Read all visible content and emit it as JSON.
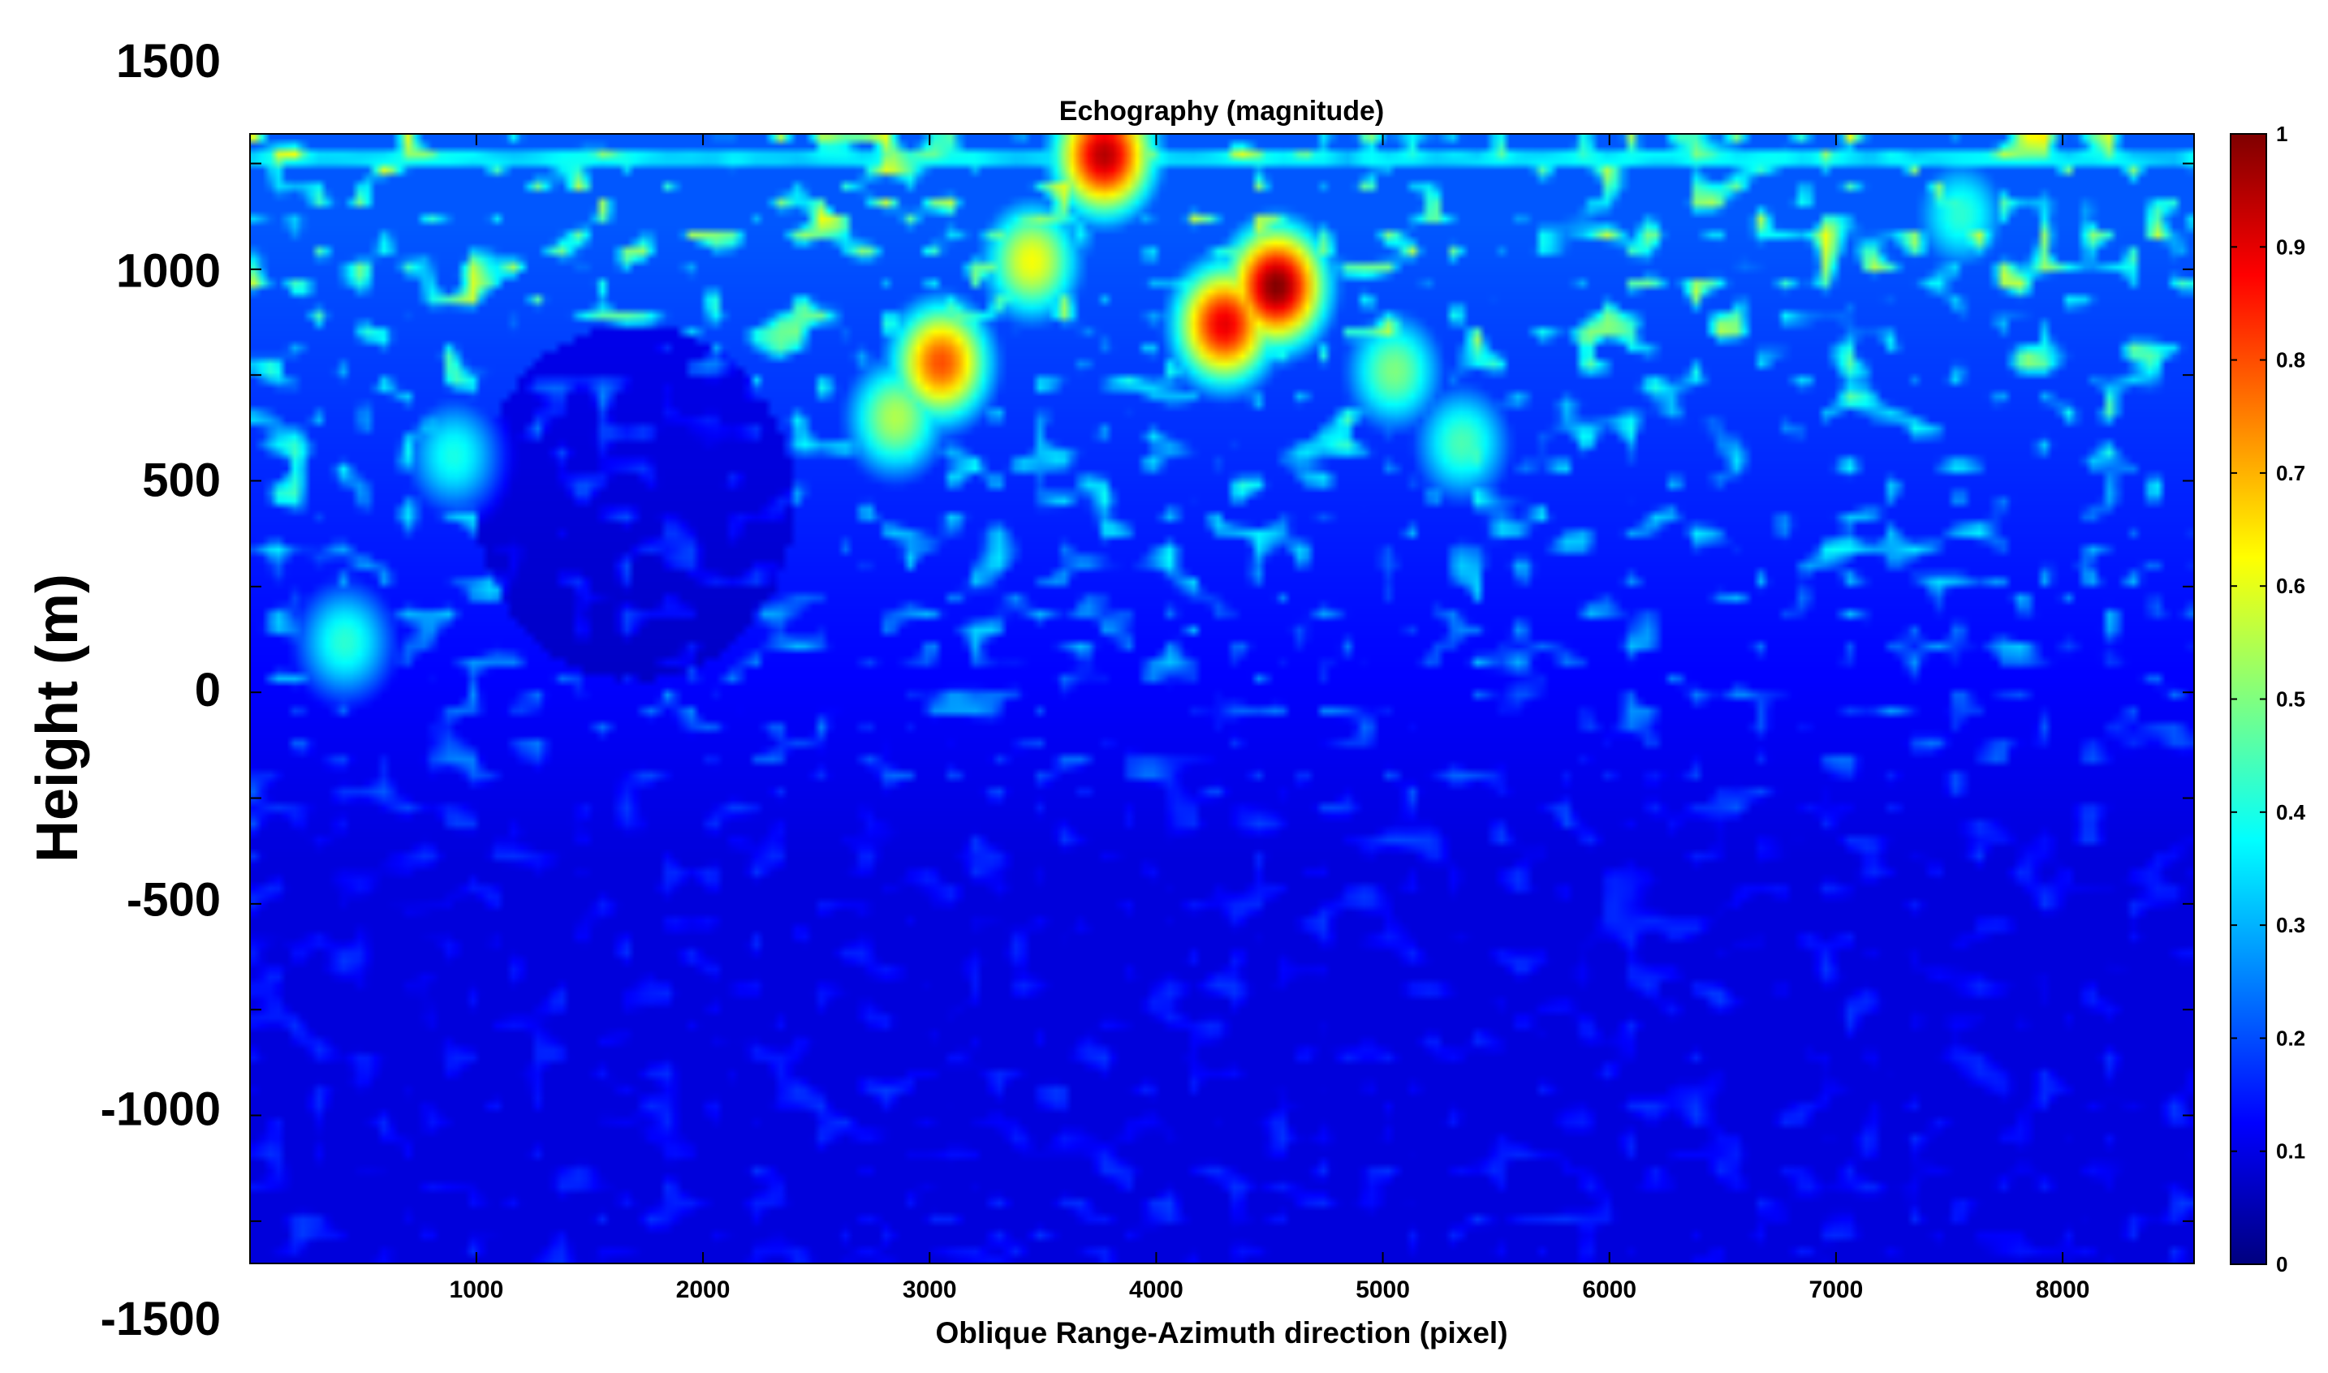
{
  "chart_data": {
    "type": "heatmap",
    "title": "Echography (magnitude)",
    "xlabel": "Oblique Range-Azimuth direction (pixel)",
    "ylabel": "Height (m)",
    "xlim": [
      1,
      8580
    ],
    "ylim": [
      -1500,
      1500
    ],
    "plot_ylim": [
      -1350,
      1320
    ],
    "x_ticks": [
      1000,
      2000,
      3000,
      4000,
      5000,
      6000,
      7000,
      8000
    ],
    "y_ticks": [
      -1500,
      -1000,
      -500,
      0,
      500,
      1000,
      1500
    ],
    "colorbar": {
      "colormap": "jet",
      "range": [
        0,
        1
      ],
      "ticks": [
        0,
        0.1,
        0.2,
        0.3,
        0.4,
        0.5,
        0.6,
        0.7,
        0.8,
        0.9,
        1
      ]
    },
    "features": [
      {
        "x": 4530,
        "y": 960,
        "value": 1.0
      },
      {
        "x": 4300,
        "y": 870,
        "value": 0.9
      },
      {
        "x": 3770,
        "y": 1270,
        "value": 0.95
      },
      {
        "x": 3050,
        "y": 780,
        "value": 0.8
      },
      {
        "x": 3450,
        "y": 1020,
        "value": 0.62
      },
      {
        "x": 2850,
        "y": 650,
        "value": 0.55
      },
      {
        "x": 5050,
        "y": 760,
        "value": 0.5
      },
      {
        "x": 5350,
        "y": 590,
        "value": 0.45
      },
      {
        "x": 7550,
        "y": 1130,
        "value": 0.42
      },
      {
        "x": 900,
        "y": 560,
        "value": 0.4
      },
      {
        "x": 420,
        "y": 120,
        "value": 0.42
      }
    ],
    "grid": false,
    "legend": "none"
  }
}
